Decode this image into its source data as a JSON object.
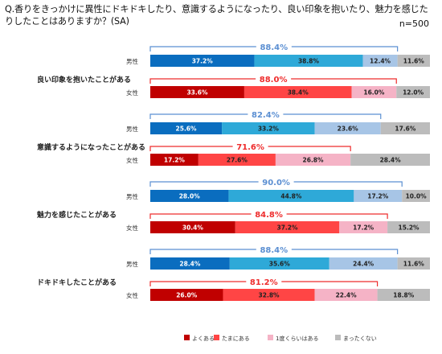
{
  "question": "Q.香りをきっかけに異性にドキドキしたり、意識するようになったり、良い印象を抱いたり、魅力を感じたりしたことはありますか？(SA)",
  "sample_size": "n=500",
  "colors": {
    "male": [
      "#0a6dbf",
      "#2ea9d8",
      "#a7c5e6",
      "#bcbcbc"
    ],
    "female": [
      "#c00000",
      "#ff4545",
      "#f5b3c6",
      "#bcbcbc"
    ],
    "male_bracket": "#5b8fd2",
    "female_bracket": "#ee2c2c"
  },
  "chart_data": {
    "type": "bar",
    "orientation": "horizontal",
    "stacked": true,
    "unit": "%",
    "xlim": [
      0,
      100
    ],
    "categories": [
      "良い印象を抱いたことがある",
      "意識するようになったことがある",
      "魅力を感じたことがある",
      "ドキドキしたことがある"
    ],
    "legend": [
      "よくある",
      "たまにある",
      "1度くらいはある",
      "まったくない"
    ],
    "legend_position": "bottom",
    "groups": [
      {
        "rows": [
          {
            "label": "男性",
            "values": [
              37.2,
              38.8,
              12.4,
              11.6
            ],
            "total_label": "88.4%"
          },
          {
            "label": "女性",
            "values": [
              33.6,
              38.4,
              16.0,
              12.0
            ],
            "total_label": "88.0%"
          }
        ]
      },
      {
        "rows": [
          {
            "label": "男性",
            "values": [
              25.6,
              33.2,
              23.6,
              17.6
            ],
            "total_label": "82.4%"
          },
          {
            "label": "女性",
            "values": [
              17.2,
              27.6,
              26.8,
              28.4
            ],
            "total_label": "71.6%"
          }
        ]
      },
      {
        "rows": [
          {
            "label": "男性",
            "values": [
              28.0,
              44.8,
              17.2,
              10.0
            ],
            "total_label": "90.0%"
          },
          {
            "label": "女性",
            "values": [
              30.4,
              37.2,
              17.2,
              15.2
            ],
            "total_label": "84.8%"
          }
        ]
      },
      {
        "rows": [
          {
            "label": "男性",
            "values": [
              28.4,
              35.6,
              24.4,
              11.6
            ],
            "total_label": "88.4%"
          },
          {
            "label": "女性",
            "values": [
              26.0,
              32.8,
              22.4,
              18.8
            ],
            "total_label": "81.2%"
          }
        ]
      }
    ]
  }
}
